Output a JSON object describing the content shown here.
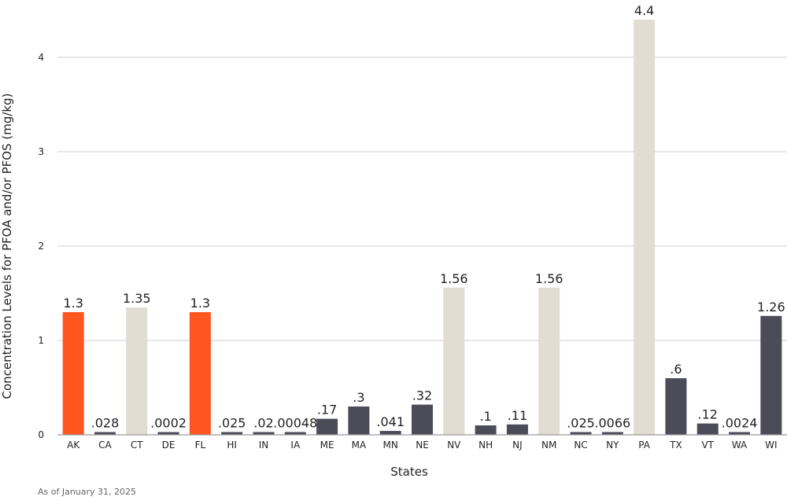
{
  "chart_data": {
    "type": "bar",
    "xlabel": "States",
    "ylabel": "Concentration Levels for PFOA and/or PFOS (mg/kg)",
    "ylim": [
      0,
      4.4
    ],
    "yticks": [
      0,
      1,
      2,
      3,
      4
    ],
    "grid": true,
    "categories": [
      "AK",
      "CA",
      "CT",
      "DE",
      "FL",
      "HI",
      "IN",
      "IA",
      "ME",
      "MA",
      "MN",
      "NE",
      "NV",
      "NH",
      "NJ",
      "NM",
      "NC",
      "NY",
      "PA",
      "TX",
      "VT",
      "WA",
      "WI"
    ],
    "values": [
      1.3,
      0.028,
      1.35,
      0.0002,
      1.3,
      0.025,
      0.02,
      0.00048,
      0.17,
      0.3,
      0.041,
      0.32,
      1.56,
      0.1,
      0.11,
      1.56,
      0.025,
      0.0066,
      4.4,
      0.6,
      0.12,
      0.0024,
      1.26
    ],
    "value_labels": [
      "1.3",
      ".028",
      "1.35",
      ".0002",
      "1.3",
      ".025",
      ".02",
      ".00048",
      ".17",
      ".3",
      ".041",
      ".32",
      "1.56",
      ".1",
      ".11",
      "1.56",
      ".025",
      ".0066",
      "4.4",
      ".6",
      ".12",
      ".0024",
      "1.26"
    ],
    "colors": [
      "#ff5620",
      "#4b4c57",
      "#e1ddd3",
      "#4b4c57",
      "#ff5620",
      "#4b4c57",
      "#4b4c57",
      "#4b4c57",
      "#4b4c57",
      "#4b4c57",
      "#4b4c57",
      "#4b4c57",
      "#e1ddd3",
      "#4b4c57",
      "#4b4c57",
      "#e1ddd3",
      "#4b4c57",
      "#4b4c57",
      "#e1ddd3",
      "#4b4c57",
      "#4b4c57",
      "#4b4c57",
      "#4b4c57"
    ]
  },
  "footnote": "As of January 31, 2025"
}
